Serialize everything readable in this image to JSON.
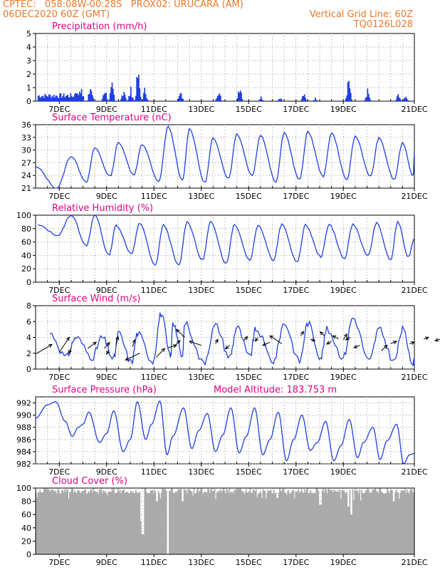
{
  "header": {
    "line1": "CPTEC:   058:08W-00:28S   PROX02: URUCARA (AM)",
    "line2_left": "06DEC2020 60Z (GMT)",
    "line2_right": "Vertical Grid Line: 60Z",
    "line3_right": "TQ0126L028"
  },
  "colors": {
    "header_text": "#e8782a",
    "panel_title": "#e0007e",
    "series": "#1f3fe0",
    "cloud": "#aaaaaa",
    "grid": "#9a9a9a",
    "wind_arrow": "#000000"
  },
  "chart_data": [
    {
      "id": "precip",
      "type": "bar",
      "title": "Precipitation (mm/h)",
      "ylim": [
        0,
        5
      ],
      "yticks": [
        "0",
        "1",
        "2",
        "3",
        "4",
        "5"
      ],
      "xticks": [
        "7DEC",
        "9DEC",
        "11DEC",
        "13DEC",
        "15DEC",
        "17DEC",
        "19DEC",
        "21DEC"
      ],
      "grid": true,
      "peaks": [
        {
          "x": 1.7,
          "y": 1.4
        },
        {
          "x": 1.9,
          "y": 1.6
        },
        {
          "x": 2.3,
          "y": 1.5
        },
        {
          "x": 2.9,
          "y": 1.3
        },
        {
          "x": 3.2,
          "y": 1.5
        },
        {
          "x": 3.7,
          "y": 1.3
        },
        {
          "x": 4.0,
          "y": 1.1
        },
        {
          "x": 4.3,
          "y": 2.8
        },
        {
          "x": 4.6,
          "y": 1.2
        },
        {
          "x": 6.1,
          "y": 0.8
        },
        {
          "x": 7.7,
          "y": 1.3
        },
        {
          "x": 8.6,
          "y": 1.8
        },
        {
          "x": 9.5,
          "y": 0.4
        },
        {
          "x": 10.3,
          "y": 0.4
        },
        {
          "x": 11.3,
          "y": 0.7
        },
        {
          "x": 11.8,
          "y": 0.3
        },
        {
          "x": 13.2,
          "y": 2.5
        },
        {
          "x": 14.0,
          "y": 1.0
        },
        {
          "x": 15.3,
          "y": 0.6
        },
        {
          "x": 15.6,
          "y": 0.4
        },
        {
          "x": 16.6,
          "y": 0.4
        },
        {
          "x": 16.9,
          "y": 0.6
        },
        {
          "x": 17.2,
          "y": 0.8
        },
        {
          "x": 17.5,
          "y": 0.6
        },
        {
          "x": 18.2,
          "y": 1.0
        },
        {
          "x": 18.5,
          "y": 1.2
        },
        {
          "x": 18.8,
          "y": 2.6
        },
        {
          "x": 19.1,
          "y": 1.3
        },
        {
          "x": 19.4,
          "y": 2.0
        },
        {
          "x": 19.7,
          "y": 1.5
        }
      ]
    },
    {
      "id": "temp",
      "type": "line",
      "title": "Surface Temperature (nC)",
      "ylim": [
        21,
        36
      ],
      "yticks": [
        "21",
        "24",
        "27",
        "30",
        "33",
        "36"
      ],
      "xticks": [
        "7DEC",
        "9DEC",
        "11DEC",
        "13DEC",
        "15DEC",
        "17DEC",
        "19DEC",
        "21DEC"
      ],
      "grid": true,
      "max_x": [
        0.0,
        1.5,
        2.5,
        3.5,
        4.5,
        5.6,
        6.5,
        7.5,
        8.5,
        9.5,
        10.5,
        11.5,
        12.5,
        13.5,
        14.5,
        15.5
      ],
      "max_y": [
        26,
        28.5,
        30.5,
        31.8,
        31.3,
        35.5,
        35.0,
        32.8,
        33.8,
        33.5,
        34.0,
        34.3,
        34.0,
        33.2,
        32.8,
        31.7
      ],
      "min_y": [
        21.0,
        22.5,
        23.8,
        24.2,
        22.5,
        22.8,
        22.3,
        23.3,
        24.0,
        22.5,
        23.0,
        23.8,
        23.0,
        23.8,
        23.0,
        24.0
      ],
      "end_y": 29.5
    },
    {
      "id": "rh",
      "type": "line",
      "title": "Relative Humidity (%)",
      "ylim": [
        0,
        100
      ],
      "yticks": [
        "0",
        "20",
        "40",
        "60",
        "80",
        "100"
      ],
      "xticks": [
        "7DEC",
        "9DEC",
        "11DEC",
        "13DEC",
        "15DEC",
        "17DEC",
        "19DEC",
        "21DEC"
      ],
      "grid": true,
      "max_x": [
        0.1,
        1.5,
        2.5,
        3.4,
        4.4,
        5.4,
        6.4,
        7.4,
        8.4,
        9.4,
        10.4,
        11.4,
        12.4,
        13.4,
        14.4,
        15.3
      ],
      "max_y": [
        85,
        100,
        100,
        85,
        88,
        85,
        90,
        90,
        86,
        85,
        86,
        85,
        86,
        86,
        88,
        90
      ],
      "min_y": [
        70,
        55,
        40,
        43,
        25,
        25,
        33,
        28,
        33,
        33,
        30,
        38,
        35,
        40,
        33,
        38
      ],
      "end_y": 65
    },
    {
      "id": "wind",
      "type": "line",
      "title": "Surface Wind (m/s)",
      "ylim": [
        0,
        8
      ],
      "yticks": [
        "0",
        "2",
        "4",
        "6",
        "8"
      ],
      "xticks": [
        "7DEC",
        "9DEC",
        "11DEC",
        "13DEC",
        "15DEC",
        "17DEC",
        "19DEC",
        "21DEC"
      ],
      "grid": true,
      "max_x": [
        0.6,
        1.7,
        2.8,
        3.5,
        4.3,
        5.3,
        5.8,
        6.3,
        7.6,
        8.5,
        9.3,
        10.5,
        11.5,
        12.3,
        13.4,
        14.5,
        15.5
      ],
      "max_y": [
        4.5,
        4.0,
        4.0,
        4.5,
        4.5,
        7.0,
        6.0,
        5.8,
        5.5,
        5.3,
        5.0,
        5.8,
        5.8,
        5.0,
        6.5,
        5.0,
        5.0
      ],
      "min_y": [
        1.5,
        1.5,
        1.3,
        0.8,
        1.0,
        1.5,
        1.5,
        0.8,
        1.5,
        1.5,
        1.0,
        1.0,
        1.5,
        1.5,
        1.0,
        1.0,
        0.8
      ],
      "arrows": [
        [
          0.0,
          1.9,
          0.69,
          1.2
        ],
        [
          1.0,
          2.1,
          0.42,
          1.9
        ],
        [
          1.5,
          2.6,
          -0.1,
          -0.6
        ],
        [
          2.2,
          2.6,
          0.36,
          0.8
        ],
        [
          2.9,
          2.6,
          0.23,
          0.75
        ],
        [
          3.1,
          2.4,
          -0.1,
          -0.5
        ],
        [
          3.4,
          3.0,
          0.08,
          1.1
        ],
        [
          4.1,
          2.8,
          0.09,
          0.9
        ],
        [
          4.4,
          2.0,
          -0.6,
          -0.85
        ],
        [
          5.1,
          1.5,
          0.35,
          1.1
        ],
        [
          5.6,
          2.7,
          0.35,
          0.3
        ],
        [
          5.9,
          3.0,
          0.2,
          0.6
        ],
        [
          6.3,
          4.0,
          -0.35,
          1.0
        ],
        [
          7.0,
          3.0,
          -0.5,
          0.5
        ],
        [
          7.6,
          3.2,
          0.1,
          0.55
        ],
        [
          8.2,
          3.0,
          -0.18,
          -0.45
        ],
        [
          8.8,
          3.6,
          0.15,
          0.5
        ],
        [
          9.4,
          4.0,
          -0.12,
          -0.48
        ],
        [
          9.9,
          3.4,
          -0.3,
          -0.4
        ],
        [
          10.4,
          3.2,
          -0.5,
          1.0
        ],
        [
          11.2,
          4.2,
          0.12,
          0.55
        ],
        [
          11.6,
          3.8,
          0.2,
          -0.25
        ],
        [
          12.2,
          4.2,
          -0.18,
          0.5
        ],
        [
          12.5,
          3.5,
          -0.2,
          -0.35
        ],
        [
          12.8,
          3.8,
          -0.25,
          0.4
        ],
        [
          13.0,
          3.7,
          0.15,
          0.72
        ],
        [
          13.3,
          4.0,
          -0.2,
          -0.3
        ],
        [
          13.7,
          3.0,
          -0.25,
          -0.3
        ],
        [
          14.6,
          2.3,
          0.25,
          0.7
        ],
        [
          15.0,
          3.2,
          0.25,
          0.3
        ],
        [
          15.8,
          3.2,
          0.2,
          0.2
        ],
        [
          16.4,
          3.8,
          0.2,
          0.2
        ],
        [
          17.1,
          3.8,
          -0.22,
          -0.25
        ]
      ]
    },
    {
      "id": "pressure",
      "type": "line",
      "title": "Surface Pressure (hPa)",
      "annotation": "Model Altitude: 183.753 m",
      "ylim": [
        982,
        993
      ],
      "yticks": [
        "982",
        "984",
        "986",
        "988",
        "990",
        "992"
      ],
      "xticks": [
        "7DEC",
        "9DEC",
        "11DEC",
        "13DEC",
        "15DEC",
        "17DEC",
        "19DEC",
        "21DEC"
      ],
      "grid": true,
      "series": [
        [
          0.0,
          989.5
        ],
        [
          0.5,
          991.7
        ],
        [
          0.85,
          992.2
        ],
        [
          1.25,
          989.0
        ],
        [
          1.55,
          986.5
        ],
        [
          1.8,
          988.0
        ],
        [
          2.0,
          988.5
        ],
        [
          2.25,
          990.5
        ],
        [
          2.7,
          985.5
        ],
        [
          3.0,
          987.0
        ],
        [
          3.3,
          990.7
        ],
        [
          3.7,
          984.0
        ],
        [
          4.0,
          986.0
        ],
        [
          4.3,
          992.2
        ],
        [
          4.65,
          986.0
        ],
        [
          4.9,
          988.5
        ],
        [
          5.25,
          992.3
        ],
        [
          5.55,
          983.5
        ],
        [
          5.8,
          986.5
        ],
        [
          6.25,
          991.2
        ],
        [
          6.6,
          984.5
        ],
        [
          6.9,
          987.5
        ],
        [
          7.25,
          990.3
        ],
        [
          7.6,
          984.0
        ],
        [
          7.9,
          986.7
        ],
        [
          8.25,
          991.2
        ],
        [
          8.6,
          983.8
        ],
        [
          8.9,
          986.5
        ],
        [
          9.25,
          991.2
        ],
        [
          9.6,
          983.5
        ],
        [
          9.9,
          986.0
        ],
        [
          10.25,
          990.5
        ],
        [
          10.6,
          982.5
        ],
        [
          10.9,
          986.0
        ],
        [
          11.25,
          990.0
        ],
        [
          11.6,
          984.2
        ],
        [
          11.9,
          985.5
        ],
        [
          12.25,
          989.0
        ],
        [
          12.6,
          982.5
        ],
        [
          12.9,
          985.0
        ],
        [
          13.25,
          989.3
        ],
        [
          13.6,
          983.0
        ],
        [
          13.85,
          985.5
        ],
        [
          14.25,
          988.0
        ],
        [
          14.55,
          982.7
        ],
        [
          14.85,
          985.8
        ],
        [
          15.25,
          988.5
        ],
        [
          15.55,
          982.0
        ],
        [
          15.8,
          983.5
        ],
        [
          16.0,
          983.7
        ]
      ]
    },
    {
      "id": "cloud",
      "type": "bar",
      "title": "Cloud Cover (%)",
      "ylim": [
        0,
        100
      ],
      "yticks": [
        "0",
        "20",
        "40",
        "60",
        "80",
        "100"
      ],
      "xticks": [
        "7DEC",
        "9DEC",
        "11DEC",
        "13DEC",
        "15DEC",
        "17DEC",
        "19DEC",
        "21DEC"
      ],
      "grid": true,
      "typical_value": 94,
      "dips": [
        {
          "x": 4.45,
          "y": 50
        },
        {
          "x": 4.5,
          "y": 30
        },
        {
          "x": 5.55,
          "y": 0
        },
        {
          "x": 5.1,
          "y": 80
        },
        {
          "x": 6.2,
          "y": 80
        },
        {
          "x": 10.2,
          "y": 85
        },
        {
          "x": 12.0,
          "y": 75
        },
        {
          "x": 13.2,
          "y": 72
        },
        {
          "x": 13.3,
          "y": 60
        },
        {
          "x": 15.1,
          "y": 80
        }
      ]
    }
  ]
}
